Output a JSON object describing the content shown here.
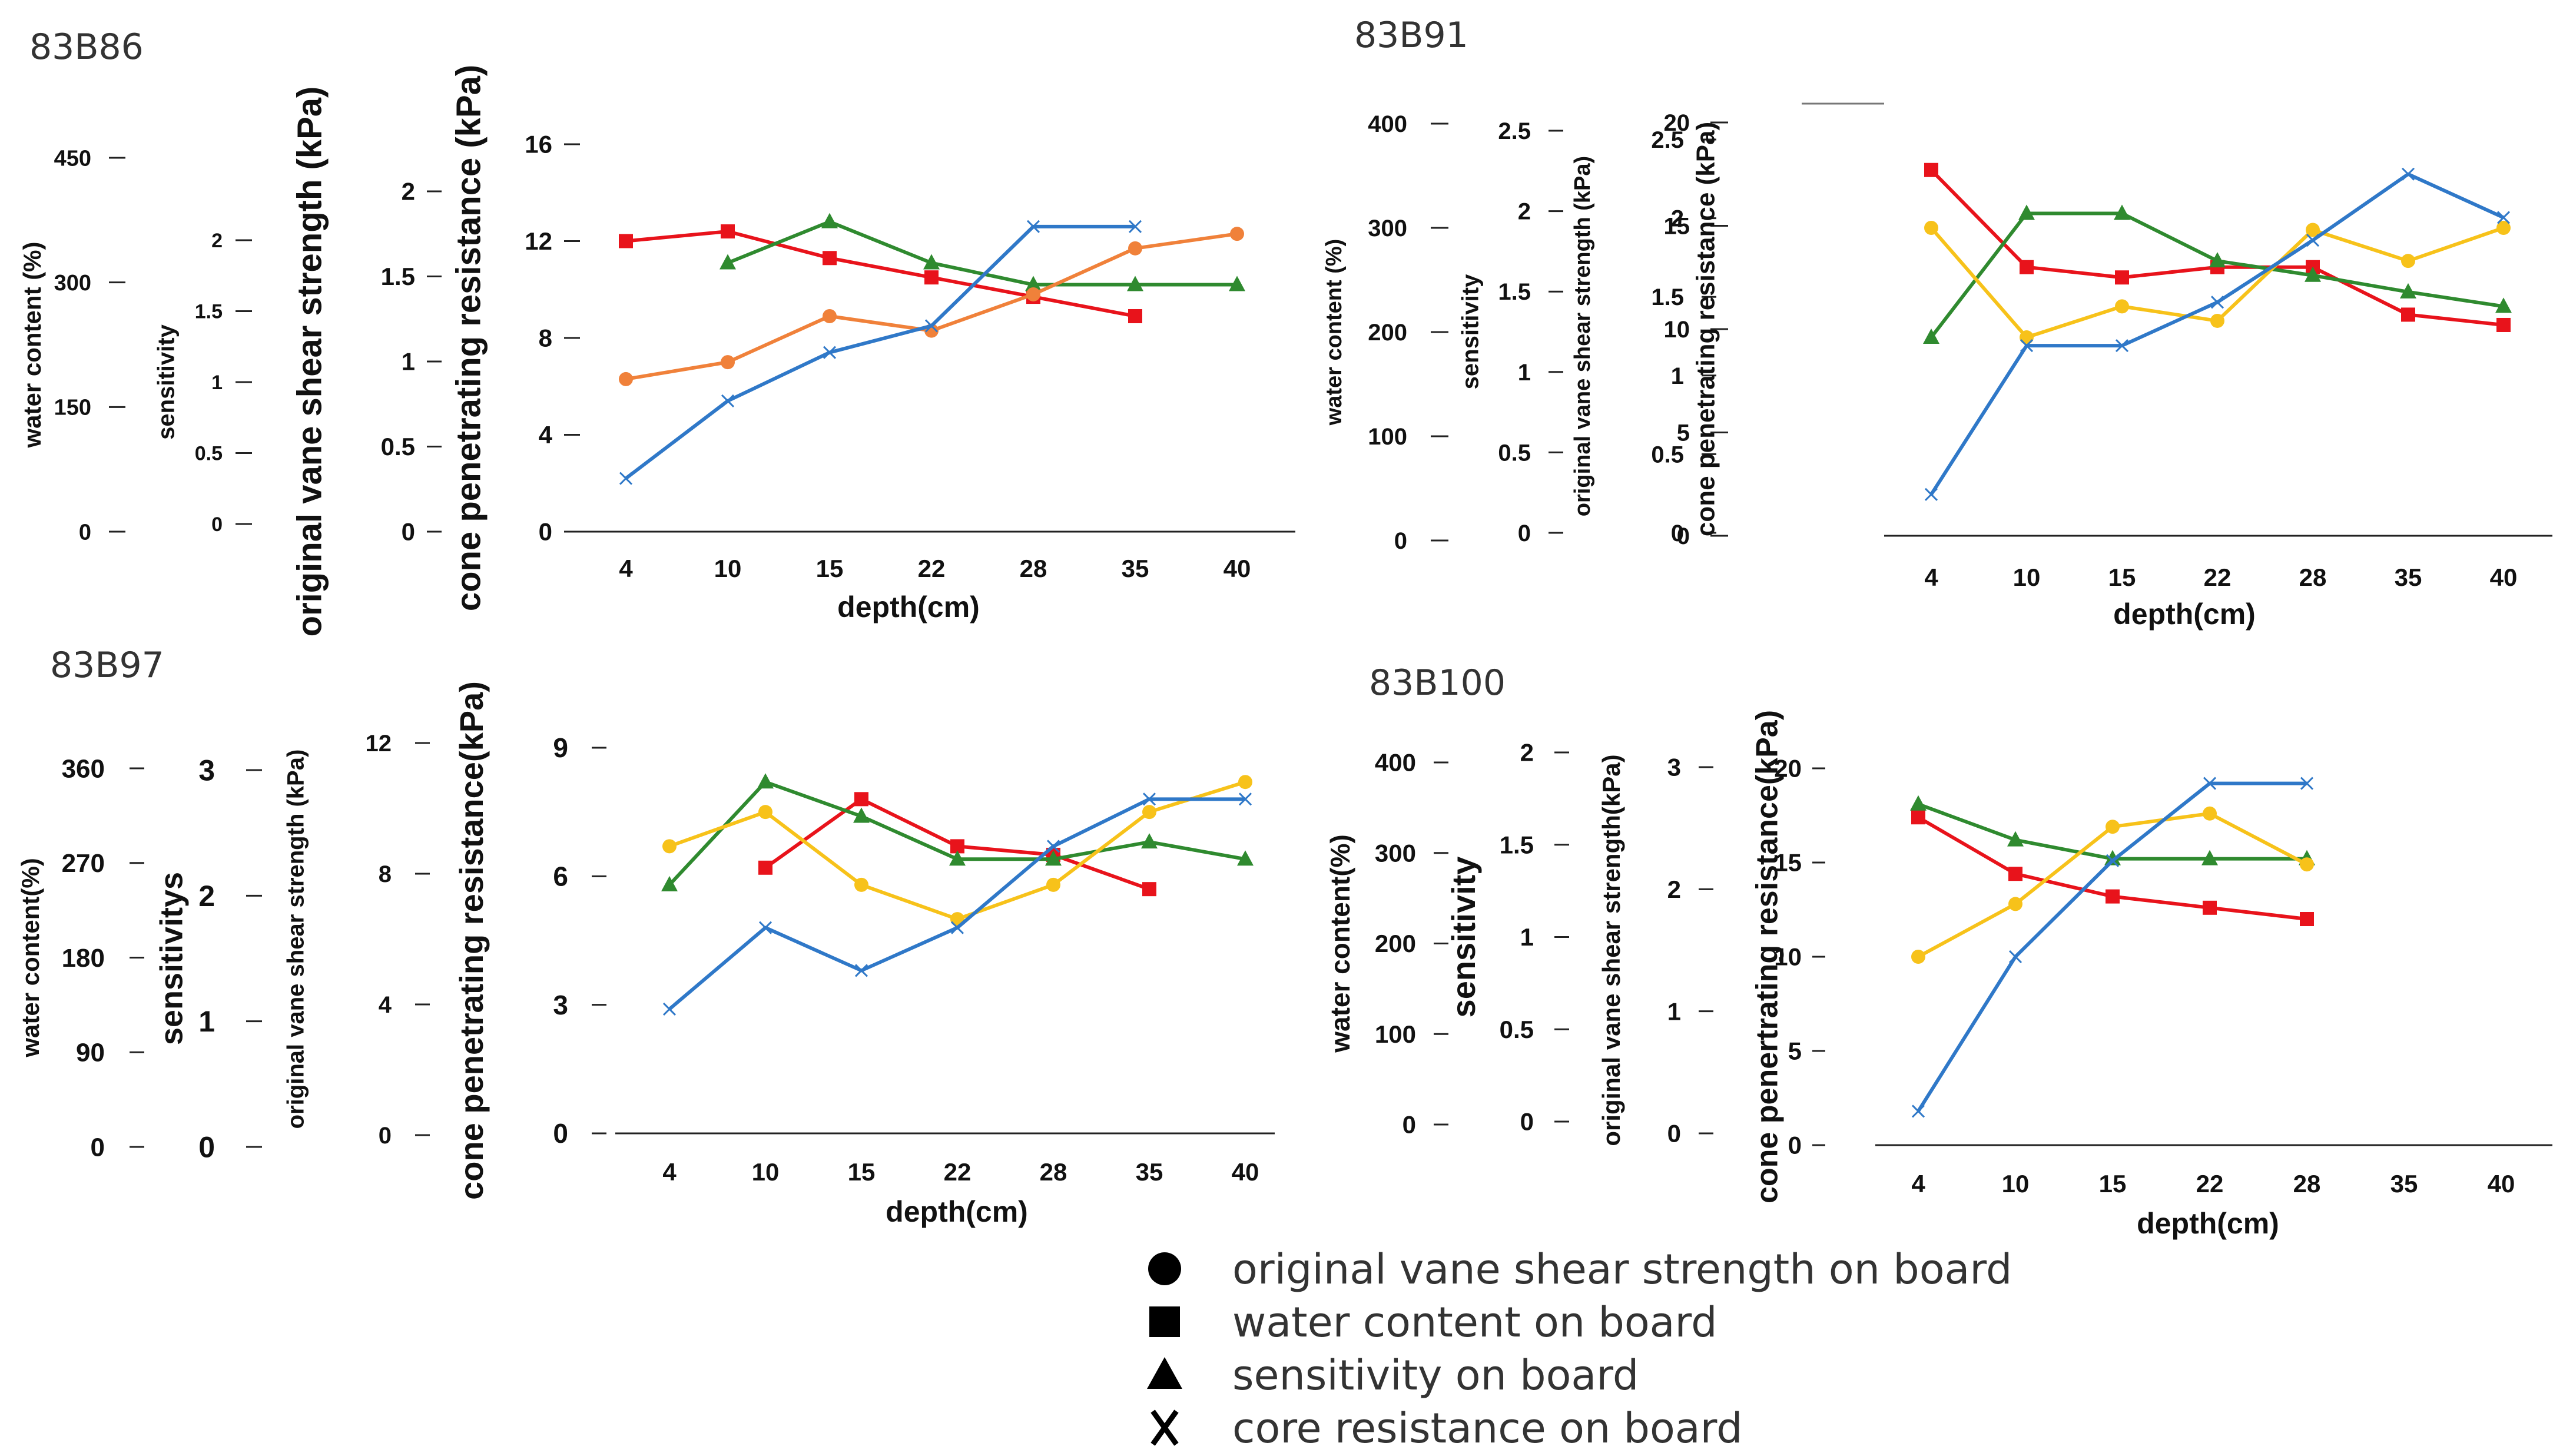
{
  "colors": {
    "water_content": "#E8131B",
    "sensitivity": "#2F8A2F",
    "cone": "#2F78C8",
    "vane_83B86": "#F0813A",
    "vane": "#F7C21A",
    "axis": "#222222"
  },
  "legend": {
    "items": [
      {
        "symbol": "circle",
        "label": "original vane shear strength on board"
      },
      {
        "symbol": "square",
        "label": "water content on board"
      },
      {
        "symbol": "triangle",
        "label": "sensitivity on board"
      },
      {
        "symbol": "x",
        "label": "core resistance on board"
      }
    ]
  },
  "chart_data": [
    {
      "title": "83B86",
      "type": "line",
      "xlabel": "depth(cm)",
      "categories": [
        "4",
        "10",
        "15",
        "22",
        "28",
        "35",
        "40"
      ],
      "axes": [
        {
          "label": "water content (%)",
          "ticks": [
            "0",
            "150",
            "300",
            "450"
          ]
        },
        {
          "label": "sensitivity",
          "ticks": [
            "0",
            "0.5",
            "1",
            "1.5",
            "2"
          ]
        },
        {
          "label": "original vane shear strength (kPa)",
          "ticks": [
            "0",
            "0.5",
            "1",
            "1.5",
            "2"
          ]
        },
        {
          "label": "cone penetrating resistance (kPa)",
          "ticks": [
            "0",
            "4",
            "8",
            "12",
            "16"
          ]
        }
      ],
      "ylim": [
        0,
        16
      ],
      "series": [
        {
          "name": "water content",
          "color_key": "water_content",
          "marker": "square",
          "values": [
            12.0,
            12.4,
            11.3,
            10.5,
            9.7,
            8.9,
            null
          ]
        },
        {
          "name": "sensitivity",
          "color_key": "sensitivity",
          "marker": "triangle",
          "values": [
            null,
            11.1,
            12.8,
            11.1,
            10.2,
            10.2,
            10.2
          ]
        },
        {
          "name": "original vane shear strength",
          "color_key": "vane_83B86",
          "marker": "circle",
          "values": [
            6.3,
            7.0,
            8.9,
            8.3,
            9.8,
            11.7,
            12.3
          ]
        },
        {
          "name": "cone resistance",
          "color_key": "cone",
          "marker": "x",
          "values": [
            2.2,
            5.4,
            7.4,
            8.5,
            12.6,
            12.6,
            null
          ]
        }
      ]
    },
    {
      "title": "83B91",
      "type": "line",
      "xlabel": "depth(cm)",
      "categories": [
        "4",
        "10",
        "15",
        "22",
        "28",
        "35",
        "40"
      ],
      "axes": [
        {
          "label": "water content (%)",
          "ticks": [
            "0",
            "100",
            "200",
            "300",
            "400"
          ]
        },
        {
          "label": "sensitivity",
          "ticks": [
            "0",
            "0.5",
            "1",
            "1.5",
            "2",
            "2.5"
          ]
        },
        {
          "label": "original vane shear strength (kPa)",
          "ticks": [
            "0",
            "0.5",
            "1",
            "1.5",
            "2",
            "2.5"
          ]
        },
        {
          "label": "cone penetrating resistance (kPa)",
          "ticks": [
            "0",
            "5",
            "10",
            "15",
            "20"
          ]
        }
      ],
      "ylim": [
        0,
        20
      ],
      "series": [
        {
          "name": "water content",
          "color_key": "water_content",
          "marker": "square",
          "values": [
            17.7,
            13.0,
            12.5,
            13.0,
            13.0,
            10.7,
            10.2
          ]
        },
        {
          "name": "sensitivity",
          "color_key": "sensitivity",
          "marker": "triangle",
          "values": [
            9.6,
            15.6,
            15.6,
            13.3,
            12.6,
            11.8,
            11.1
          ]
        },
        {
          "name": "original vane shear strength",
          "color_key": "vane",
          "marker": "circle",
          "values": [
            14.9,
            9.6,
            11.1,
            10.4,
            14.8,
            13.3,
            14.9
          ]
        },
        {
          "name": "cone resistance",
          "color_key": "cone",
          "marker": "x",
          "values": [
            2.0,
            9.2,
            9.2,
            11.3,
            14.3,
            17.5,
            15.4
          ]
        }
      ]
    },
    {
      "title": "83B97",
      "type": "line",
      "xlabel": "depth(cm)",
      "categories": [
        "4",
        "10",
        "15",
        "22",
        "28",
        "35",
        "40"
      ],
      "axes": [
        {
          "label": "water content(%)",
          "ticks": [
            "0",
            "90",
            "180",
            "270",
            "360"
          ]
        },
        {
          "label": "sensitivitys",
          "ticks": [
            "0",
            "1",
            "2",
            "3"
          ]
        },
        {
          "label": "original vane shear strength (kPa)",
          "ticks": [
            "0",
            "4",
            "8",
            "12"
          ]
        },
        {
          "label": "cone penetrating resistance(kPa)",
          "ticks": [
            "0",
            "3",
            "6",
            "9"
          ]
        }
      ],
      "ylim": [
        0,
        9
      ],
      "series": [
        {
          "name": "water content",
          "color_key": "water_content",
          "marker": "square",
          "values": [
            null,
            6.2,
            7.8,
            6.7,
            6.5,
            5.7,
            null
          ]
        },
        {
          "name": "sensitivity",
          "color_key": "sensitivity",
          "marker": "triangle",
          "values": [
            5.8,
            8.2,
            7.4,
            6.4,
            6.4,
            6.8,
            6.4
          ]
        },
        {
          "name": "original vane shear strength",
          "color_key": "vane",
          "marker": "circle",
          "values": [
            6.7,
            7.5,
            5.8,
            5.0,
            5.8,
            7.5,
            8.2
          ]
        },
        {
          "name": "cone resistance",
          "color_key": "cone",
          "marker": "x",
          "values": [
            2.9,
            4.8,
            3.8,
            4.8,
            6.7,
            7.8,
            7.8
          ]
        }
      ]
    },
    {
      "title": "83B100",
      "type": "line",
      "xlabel": "depth(cm)",
      "categories": [
        "4",
        "10",
        "15",
        "22",
        "28",
        "35",
        "40"
      ],
      "axes": [
        {
          "label": "water content(%)",
          "ticks": [
            "0",
            "100",
            "200",
            "300",
            "400"
          ]
        },
        {
          "label": "sensitivity",
          "ticks": [
            "0",
            "0.5",
            "1",
            "1.5",
            "2"
          ]
        },
        {
          "label": "original vane shear strength(kPa)",
          "ticks": [
            "0",
            "1",
            "2",
            "3"
          ]
        },
        {
          "label": "cone penertrating resistance(kPa)",
          "ticks": [
            "0",
            "5",
            "10",
            "15",
            "20"
          ]
        }
      ],
      "ylim": [
        0,
        20
      ],
      "series": [
        {
          "name": "water content",
          "color_key": "water_content",
          "marker": "square",
          "values": [
            17.4,
            14.4,
            13.2,
            12.6,
            12.0,
            null,
            null
          ]
        },
        {
          "name": "sensitivity",
          "color_key": "sensitivity",
          "marker": "triangle",
          "values": [
            18.1,
            16.2,
            15.2,
            15.2,
            15.2,
            null,
            null
          ]
        },
        {
          "name": "original vane shear strength",
          "color_key": "vane",
          "marker": "circle",
          "values": [
            10.0,
            12.8,
            16.9,
            17.6,
            14.9,
            null,
            null
          ]
        },
        {
          "name": "cone resistance",
          "color_key": "cone",
          "marker": "x",
          "values": [
            1.8,
            10.0,
            15.1,
            19.2,
            19.2,
            null,
            null
          ]
        }
      ]
    }
  ]
}
